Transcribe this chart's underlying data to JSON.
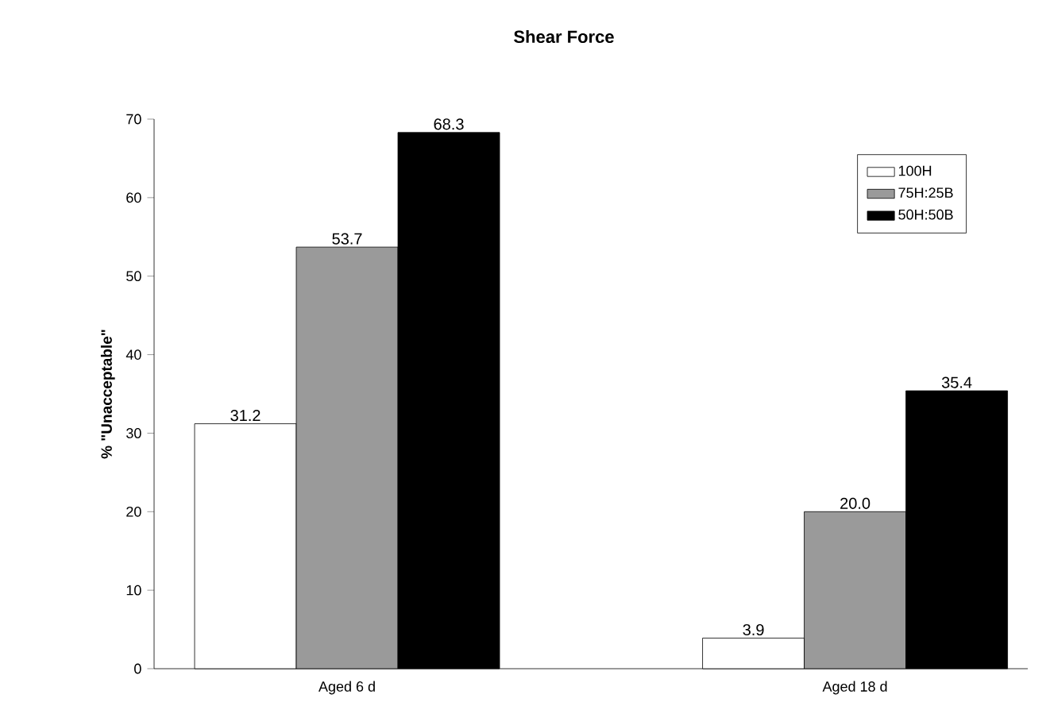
{
  "chart_data": {
    "type": "bar",
    "title": "Shear Force",
    "ylabel": "% \"Unacceptable\"",
    "categories": [
      "Aged 6 d",
      "Aged 18 d"
    ],
    "series": [
      {
        "name": "100H",
        "color": "#ffffff",
        "values": [
          31.2,
          3.9
        ],
        "value_labels": [
          "31.2",
          "3.9"
        ]
      },
      {
        "name": "75H:25B",
        "color": "#9a9a9a",
        "values": [
          53.7,
          20.0
        ],
        "value_labels": [
          "53.7",
          "20.0"
        ]
      },
      {
        "name": "50H:50B",
        "color": "#000000",
        "values": [
          68.3,
          35.4
        ],
        "value_labels": [
          "68.3",
          "35.4"
        ]
      }
    ],
    "ylim": [
      0,
      70
    ],
    "yticks": [
      0,
      10,
      20,
      30,
      40,
      50,
      60,
      70
    ],
    "grid": false,
    "legend": "top right"
  }
}
